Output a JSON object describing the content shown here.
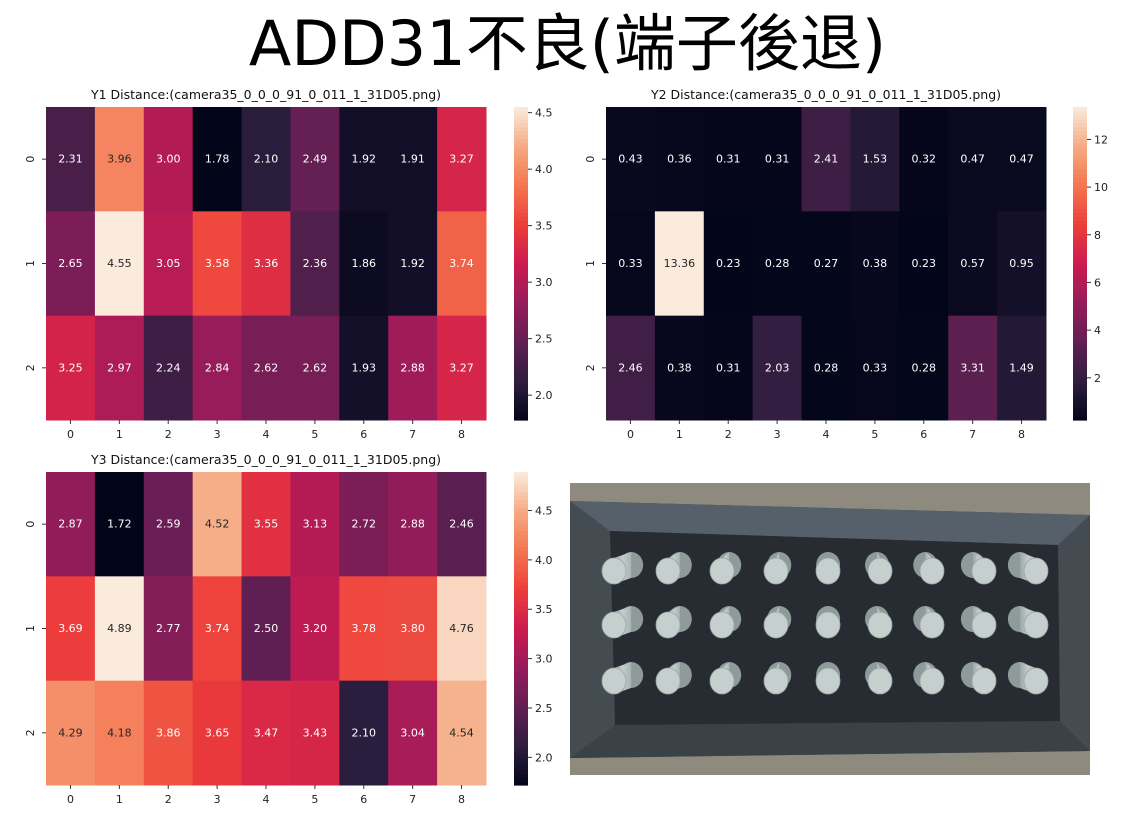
{
  "page": {
    "title": "ADD31不良(端子後退)"
  },
  "colors": {
    "colormap": "rocket",
    "stops": [
      "#03051a",
      "#2d1e3e",
      "#611f53",
      "#961c5b",
      "#cb1b4f",
      "#ed3d3a",
      "#f37651",
      "#f6aa82",
      "#faebdd"
    ],
    "photo_background": "#8d8a7c",
    "photo_tray": "#3b4248",
    "photo_pin": "#b7c3c3"
  },
  "chart_data": [
    {
      "type": "heatmap",
      "title": "Y1 Distance:(camera35_0_0_0_91_0_011_1_31D05.png)",
      "x": [
        "0",
        "1",
        "2",
        "3",
        "4",
        "5",
        "6",
        "7",
        "8"
      ],
      "y": [
        "0",
        "1",
        "2"
      ],
      "values": [
        [
          2.31,
          3.96,
          3.0,
          1.78,
          2.1,
          2.49,
          1.92,
          1.91,
          3.27
        ],
        [
          2.65,
          4.55,
          3.05,
          3.58,
          3.36,
          2.36,
          1.86,
          1.92,
          3.74
        ],
        [
          3.25,
          2.97,
          2.24,
          2.84,
          2.62,
          2.62,
          1.93,
          2.88,
          3.27
        ]
      ],
      "labels": [
        [
          "2.31",
          "3.96",
          "3.00",
          "1.78",
          "2.10",
          "2.49",
          "1.92",
          "1.91",
          "3.27"
        ],
        [
          "2.65",
          "4.55",
          "3.05",
          "3.58",
          "3.36",
          "2.36",
          "1.86",
          "1.92",
          "3.74"
        ],
        [
          "3.25",
          "2.97",
          "2.24",
          "2.84",
          "2.62",
          "2.62",
          "1.93",
          "2.88",
          "3.27"
        ]
      ],
      "vmin": 1.78,
      "vmax": 4.55,
      "colorbar_ticks": [
        "2.0",
        "2.5",
        "3.0",
        "3.5",
        "4.0",
        "4.5"
      ],
      "colorbar_tick_values": [
        2.0,
        2.5,
        3.0,
        3.5,
        4.0,
        4.5
      ]
    },
    {
      "type": "heatmap",
      "title": "Y2 Distance:(camera35_0_0_0_91_0_011_1_31D05.png)",
      "x": [
        "0",
        "1",
        "2",
        "3",
        "4",
        "5",
        "6",
        "7",
        "8"
      ],
      "y": [
        "0",
        "1",
        "2"
      ],
      "values": [
        [
          0.43,
          0.36,
          0.31,
          0.31,
          2.41,
          1.53,
          0.32,
          0.47,
          0.47
        ],
        [
          0.33,
          13.36,
          0.23,
          0.28,
          0.27,
          0.38,
          0.23,
          0.57,
          0.95
        ],
        [
          2.46,
          0.38,
          0.31,
          2.03,
          0.28,
          0.33,
          0.28,
          3.31,
          1.49
        ]
      ],
      "labels": [
        [
          "0.43",
          "0.36",
          "0.31",
          "0.31",
          "2.41",
          "1.53",
          "0.32",
          "0.47",
          "0.47"
        ],
        [
          "0.33",
          "13.36",
          "0.23",
          "0.28",
          "0.27",
          "0.38",
          "0.23",
          "0.57",
          "0.95"
        ],
        [
          "2.46",
          "0.38",
          "0.31",
          "2.03",
          "0.28",
          "0.33",
          "0.28",
          "3.31",
          "1.49"
        ]
      ],
      "vmin": 0.23,
      "vmax": 13.36,
      "colorbar_ticks": [
        "2",
        "4",
        "6",
        "8",
        "10",
        "12"
      ],
      "colorbar_tick_values": [
        2,
        4,
        6,
        8,
        10,
        12
      ]
    },
    {
      "type": "heatmap",
      "title": "Y3 Distance:(camera35_0_0_0_91_0_011_1_31D05.png)",
      "x": [
        "0",
        "1",
        "2",
        "3",
        "4",
        "5",
        "6",
        "7",
        "8"
      ],
      "y": [
        "0",
        "1",
        "2"
      ],
      "values": [
        [
          2.87,
          1.72,
          2.59,
          4.52,
          3.55,
          3.13,
          2.72,
          2.88,
          2.46
        ],
        [
          3.69,
          4.89,
          2.77,
          3.74,
          2.5,
          3.2,
          3.78,
          3.8,
          4.76
        ],
        [
          4.29,
          4.18,
          3.86,
          3.65,
          3.47,
          3.43,
          2.1,
          3.04,
          4.54
        ]
      ],
      "labels": [
        [
          "2.87",
          "1.72",
          "2.59",
          "4.52",
          "3.55",
          "3.13",
          "2.72",
          "2.88",
          "2.46"
        ],
        [
          "3.69",
          "4.89",
          "2.77",
          "3.74",
          "2.50",
          "3.20",
          "3.78",
          "3.80",
          "4.76"
        ],
        [
          "4.29",
          "4.18",
          "3.86",
          "3.65",
          "3.47",
          "3.43",
          "2.10",
          "3.04",
          "4.54"
        ]
      ],
      "vmin": 1.72,
      "vmax": 4.89,
      "colorbar_ticks": [
        "2.0",
        "2.5",
        "3.0",
        "3.5",
        "4.0",
        "4.5"
      ],
      "colorbar_tick_values": [
        2.0,
        2.5,
        3.0,
        3.5,
        4.0,
        4.5
      ]
    }
  ]
}
